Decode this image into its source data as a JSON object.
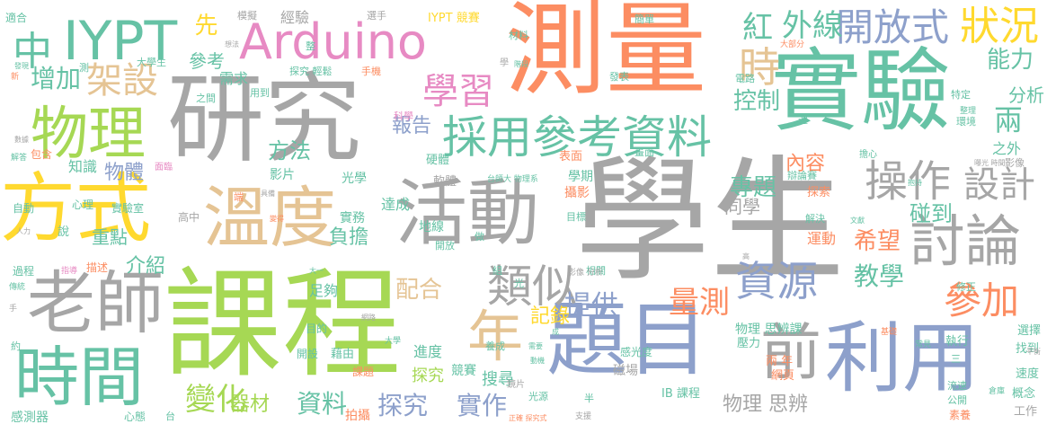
{
  "palette": {
    "gray": "#a6a6a6",
    "green": "#66c2a5",
    "orange": "#fc8d62",
    "blue": "#8da0cb",
    "pink": "#e78ac3",
    "lime": "#a6d854",
    "yellow": "#ffd92f",
    "tan": "#e5c494"
  },
  "words": [
    {
      "text": "學生",
      "color": "gray"
    },
    {
      "text": "課程",
      "color": "lime"
    },
    {
      "text": "研究",
      "color": "gray"
    },
    {
      "text": "測量",
      "color": "orange"
    },
    {
      "text": "實驗",
      "color": "green"
    },
    {
      "text": "題目",
      "color": "blue"
    },
    {
      "text": "利用",
      "color": "blue"
    },
    {
      "text": "方式",
      "color": "yellow"
    },
    {
      "text": "活動",
      "color": "gray"
    },
    {
      "text": "溫度",
      "color": "tan"
    },
    {
      "text": "老師",
      "color": "gray"
    },
    {
      "text": "時間",
      "color": "green"
    },
    {
      "text": "Arduino",
      "color": "pink"
    },
    {
      "text": "IYPT",
      "color": "green"
    },
    {
      "text": "物理",
      "color": "lime"
    },
    {
      "text": "採用參考資料",
      "color": "green"
    },
    {
      "text": "前",
      "color": "gray"
    },
    {
      "text": "年",
      "color": "tan"
    },
    {
      "text": "中",
      "color": "green"
    },
    {
      "text": "開放式",
      "color": "blue"
    },
    {
      "text": "狀況",
      "color": "yellow"
    },
    {
      "text": "討論",
      "color": "gray"
    },
    {
      "text": "操作",
      "color": "gray"
    },
    {
      "text": "類似",
      "color": "gray"
    },
    {
      "text": "資源",
      "color": "blue"
    },
    {
      "text": "學習",
      "color": "pink"
    },
    {
      "text": "架設",
      "color": "tan"
    },
    {
      "text": "參加",
      "color": "orange"
    },
    {
      "text": "設計",
      "color": "gray"
    },
    {
      "text": "時",
      "color": "tan"
    },
    {
      "text": "外線",
      "color": "green"
    },
    {
      "text": "紅",
      "color": "green"
    },
    {
      "text": "量測",
      "color": "orange"
    },
    {
      "text": "增加",
      "color": "green"
    },
    {
      "text": "能力",
      "color": "green"
    },
    {
      "text": "控制",
      "color": "green"
    },
    {
      "text": "變化",
      "color": "lime"
    },
    {
      "text": "資料",
      "color": "green"
    },
    {
      "text": "探究",
      "color": "blue"
    },
    {
      "text": "實作",
      "color": "blue"
    },
    {
      "text": "教學",
      "color": "green"
    },
    {
      "text": "方法",
      "color": "green"
    },
    {
      "text": "提供",
      "color": "blue"
    },
    {
      "text": "配合",
      "color": "tan"
    },
    {
      "text": "專題",
      "color": "green"
    },
    {
      "text": "希望",
      "color": "orange"
    },
    {
      "text": "內容",
      "color": "orange"
    },
    {
      "text": "碰到",
      "color": "green"
    },
    {
      "text": "報告",
      "color": "blue"
    },
    {
      "text": "物體",
      "color": "blue"
    },
    {
      "text": "參考",
      "color": "green"
    },
    {
      "text": "兩",
      "color": "green"
    },
    {
      "text": "分析",
      "color": "green"
    },
    {
      "text": "先",
      "color": "yellow"
    },
    {
      "text": "器材",
      "color": "lime"
    },
    {
      "text": "物理 思辨",
      "color": "gray"
    },
    {
      "text": "負擔",
      "color": "green"
    },
    {
      "text": "介紹",
      "color": "green"
    },
    {
      "text": "重點",
      "color": "green"
    },
    {
      "text": "記錄",
      "color": "yellow"
    },
    {
      "text": "同學",
      "color": "gray"
    },
    {
      "text": "需求",
      "color": "green"
    },
    {
      "text": "知識",
      "color": "green"
    },
    {
      "text": "探究",
      "color": "lime"
    },
    {
      "text": "經驗",
      "color": "gray"
    },
    {
      "text": "搜尋",
      "color": "green"
    },
    {
      "text": "進度",
      "color": "green"
    },
    {
      "text": "運動",
      "color": "orange"
    },
    {
      "text": "影片",
      "color": "green"
    },
    {
      "text": "光學",
      "color": "green"
    },
    {
      "text": "達成",
      "color": "green"
    },
    {
      "text": "實務",
      "color": "green"
    },
    {
      "text": "地線",
      "color": "green"
    },
    {
      "text": "足夠",
      "color": "green"
    },
    {
      "text": "拍攝",
      "color": "orange"
    },
    {
      "text": "競賽",
      "color": "green"
    },
    {
      "text": "磁場",
      "color": "gray"
    },
    {
      "text": "概念",
      "color": "green"
    },
    {
      "text": "工作",
      "color": "gray"
    },
    {
      "text": "感測器",
      "color": "green"
    },
    {
      "text": "物理 思辨課",
      "color": "green"
    },
    {
      "text": "IB 課程",
      "color": "green"
    },
    {
      "text": "IYPT 競賽",
      "color": "yellow"
    },
    {
      "text": "執行",
      "color": "green"
    },
    {
      "text": "選擇",
      "color": "green"
    },
    {
      "text": "找到",
      "color": "green"
    },
    {
      "text": "速度",
      "color": "green"
    },
    {
      "text": "壓力",
      "color": "green"
    },
    {
      "text": "兩 年",
      "color": "orange"
    },
    {
      "text": "網頁",
      "color": "orange"
    },
    {
      "text": "感光度",
      "color": "green"
    },
    {
      "text": "之外",
      "color": "green"
    },
    {
      "text": "影像",
      "color": "gray"
    },
    {
      "text": "環境",
      "color": "green"
    },
    {
      "text": "特定",
      "color": "green"
    },
    {
      "text": "攝影",
      "color": "orange"
    },
    {
      "text": "學期",
      "color": "green"
    },
    {
      "text": "軟體",
      "color": "gray"
    },
    {
      "text": "硬體",
      "color": "green"
    },
    {
      "text": "表面",
      "color": "orange"
    },
    {
      "text": "畫面",
      "color": "green"
    },
    {
      "text": "課題",
      "color": "orange"
    },
    {
      "text": "藉由",
      "color": "green"
    },
    {
      "text": "目的",
      "color": "green"
    },
    {
      "text": "開設",
      "color": "green"
    },
    {
      "text": "實驗室",
      "color": "green"
    },
    {
      "text": "自動",
      "color": "green"
    },
    {
      "text": "心理",
      "color": "green"
    },
    {
      "text": "高中",
      "color": "gray"
    },
    {
      "text": "說",
      "color": "green"
    },
    {
      "text": "包含",
      "color": "orange"
    },
    {
      "text": "解答",
      "color": "green"
    },
    {
      "text": "過程",
      "color": "green"
    },
    {
      "text": "指導",
      "color": "pink"
    },
    {
      "text": "描述",
      "color": "orange"
    },
    {
      "text": "適合",
      "color": "green"
    },
    {
      "text": "模擬",
      "color": "gray"
    },
    {
      "text": "選手",
      "color": "gray"
    },
    {
      "text": "材料",
      "color": "green"
    },
    {
      "text": "簡單",
      "color": "green"
    },
    {
      "text": "大學生",
      "color": "green"
    },
    {
      "text": "探究 輕鬆",
      "color": "green"
    },
    {
      "text": "手機",
      "color": "orange"
    },
    {
      "text": "用到",
      "color": "green"
    },
    {
      "text": "之間",
      "color": "green"
    },
    {
      "text": "科學",
      "color": "pink"
    },
    {
      "text": "發表",
      "color": "green"
    },
    {
      "text": "電路",
      "color": "green"
    },
    {
      "text": "大部分",
      "color": "orange"
    },
    {
      "text": "整理",
      "color": "green"
    },
    {
      "text": "週",
      "color": "green"
    },
    {
      "text": "擔心",
      "color": "green"
    },
    {
      "text": "辯論賽",
      "color": "green"
    },
    {
      "text": "探索",
      "color": "orange"
    },
    {
      "text": "解決",
      "color": "green"
    },
    {
      "text": "修正",
      "color": "green"
    },
    {
      "text": "基礎",
      "color": "orange"
    },
    {
      "text": "倉庫",
      "color": "green"
    },
    {
      "text": "素養",
      "color": "orange"
    },
    {
      "text": "公開",
      "color": "green"
    },
    {
      "text": "流速",
      "color": "green"
    },
    {
      "text": "三",
      "color": "green"
    },
    {
      "text": "常見",
      "color": "green"
    },
    {
      "text": "目標",
      "color": "green"
    },
    {
      "text": "相關",
      "color": "green"
    },
    {
      "text": "開放",
      "color": "green"
    },
    {
      "text": "做",
      "color": "green"
    },
    {
      "text": "組",
      "color": "green"
    },
    {
      "text": "光",
      "color": "green"
    },
    {
      "text": "台師大 物理系",
      "color": "green"
    },
    {
      "text": "光源",
      "color": "green"
    },
    {
      "text": "鏡片",
      "color": "gray"
    },
    {
      "text": "大學",
      "color": "green"
    },
    {
      "text": "養成",
      "color": "green"
    },
    {
      "text": "半",
      "color": "green"
    },
    {
      "text": "正確 探究式",
      "color": "orange"
    },
    {
      "text": "支援",
      "color": "gray"
    },
    {
      "text": "心態",
      "color": "green"
    },
    {
      "text": "台",
      "color": "green"
    },
    {
      "text": "約",
      "color": "green"
    },
    {
      "text": "手",
      "color": "gray"
    },
    {
      "text": "傳統",
      "color": "green"
    },
    {
      "text": "面臨",
      "color": "pink"
    },
    {
      "text": "端",
      "color": "orange"
    },
    {
      "text": "大一",
      "color": "green"
    },
    {
      "text": "想法",
      "color": "gray"
    },
    {
      "text": "測",
      "color": "green"
    },
    {
      "text": "整",
      "color": "green"
    },
    {
      "text": "階段",
      "color": "green"
    },
    {
      "text": "學",
      "color": "gray"
    },
    {
      "text": "新",
      "color": "orange"
    },
    {
      "text": "發現",
      "color": "green"
    },
    {
      "text": "數據",
      "color": "gray"
    },
    {
      "text": "人力",
      "color": "gray"
    },
    {
      "text": "變得",
      "color": "orange"
    },
    {
      "text": "具備",
      "color": "gray"
    },
    {
      "text": "網路",
      "color": "gray"
    },
    {
      "text": "影像 分析",
      "color": "gray"
    },
    {
      "text": "文獻",
      "color": "green"
    },
    {
      "text": "抱持",
      "color": "green"
    },
    {
      "text": "曝光 時間",
      "color": "gray"
    },
    {
      "text": "平衡",
      "color": "gray"
    },
    {
      "text": "動機",
      "color": "green"
    },
    {
      "text": "高",
      "color": "gray"
    },
    {
      "text": "成",
      "color": "green"
    },
    {
      "text": "需要",
      "color": "green"
    }
  ]
}
